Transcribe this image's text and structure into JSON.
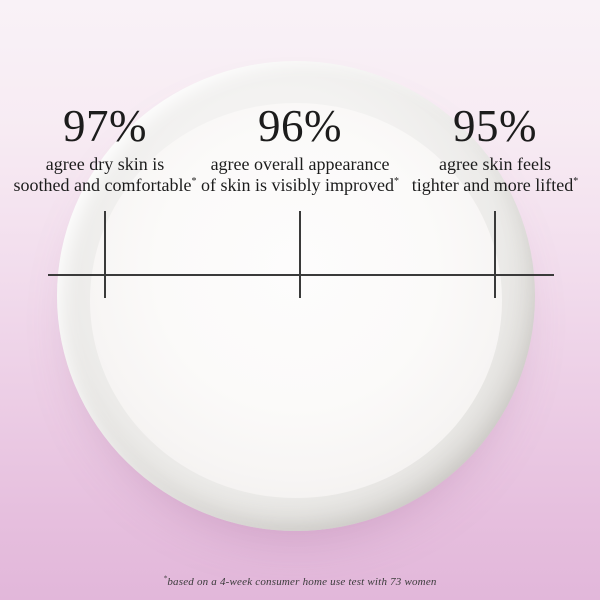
{
  "stats": [
    {
      "value": "97%",
      "line1": "agree dry skin is",
      "line2": "soothed and comfortable",
      "marker": "*"
    },
    {
      "value": "96%",
      "line1": "agree overall appearance",
      "line2": "of skin is visibly improved",
      "marker": "*"
    },
    {
      "value": "95%",
      "line1": "agree skin feels",
      "line2": "tighter and more lifted",
      "marker": "*"
    }
  ],
  "footnote": {
    "marker": "*",
    "text": "based on a 4-week consumer home use test with 73 women"
  },
  "colors": {
    "background_top": "#f9f2f7",
    "background_bottom": "#e2b7da",
    "text": "#1c1c1c",
    "line": "#3a3a3a",
    "cream": "#f6f5f4"
  }
}
